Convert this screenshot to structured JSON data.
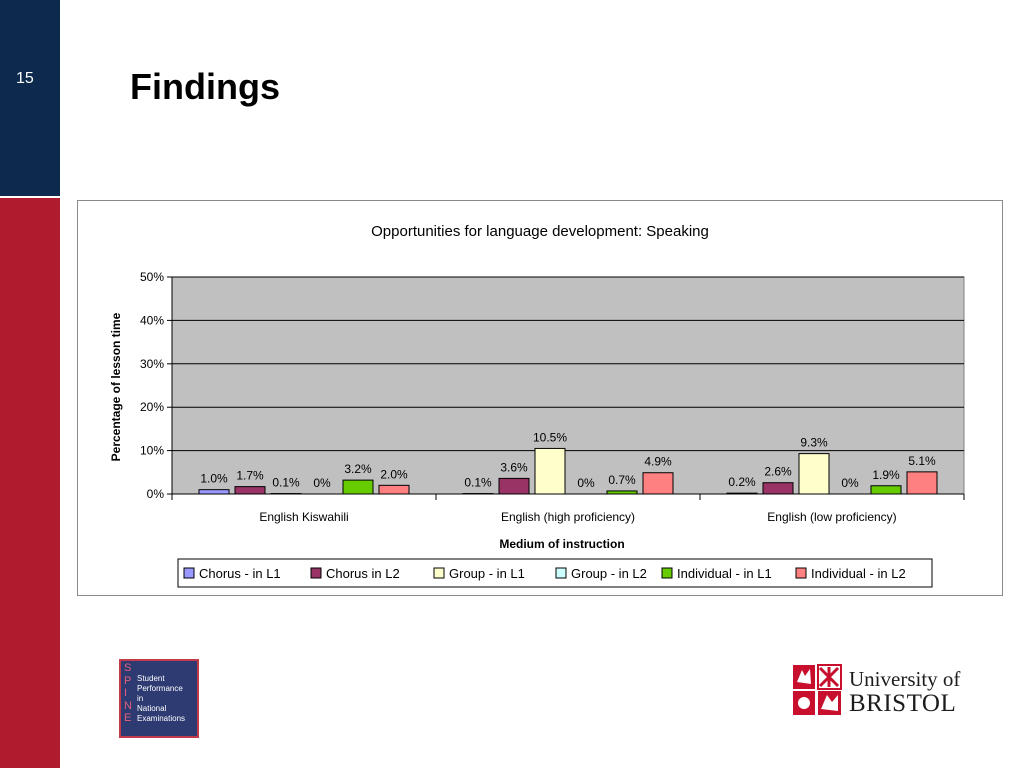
{
  "slide": {
    "number": "15",
    "title": "Findings"
  },
  "colors": {
    "sidebar_top": "#0d2a4e",
    "sidebar_bottom": "#b01c2e",
    "plot_background": "#c0c0c0"
  },
  "chart_data": {
    "type": "bar",
    "title": "Opportunities for language development: Speaking",
    "xlabel": "Medium of instruction",
    "ylabel": "Percentage of lesson time",
    "ylim": [
      0,
      50
    ],
    "yticks": [
      "0%",
      "10%",
      "20%",
      "30%",
      "40%",
      "50%"
    ],
    "grid": true,
    "legend_position": "bottom",
    "categories": [
      "English Kiswahili",
      "English (high proficiency)",
      "English (low proficiency)"
    ],
    "series": [
      {
        "name": "Chorus - in L1",
        "color": "#9999ff",
        "values": [
          1.0,
          0.1,
          0.2
        ],
        "labels": [
          "1.0%",
          "0.1%",
          "0.2%"
        ]
      },
      {
        "name": "Chorus in L2",
        "color": "#993366",
        "values": [
          1.7,
          3.6,
          2.6
        ],
        "labels": [
          "1.7%",
          "3.6%",
          "2.6%"
        ]
      },
      {
        "name": "Group - in L1",
        "color": "#ffffcc",
        "values": [
          0.1,
          10.5,
          9.3
        ],
        "labels": [
          "0.1%",
          "10.5%",
          "9.3%"
        ]
      },
      {
        "name": "Group - in L2",
        "color": "#ccffff",
        "values": [
          0,
          0,
          0
        ],
        "labels": [
          "0%",
          "0%",
          "0%"
        ]
      },
      {
        "name": "Individual - in L1",
        "color": "#66cc00",
        "values": [
          3.2,
          0.7,
          1.9
        ],
        "labels": [
          "3.2%",
          "0.7%",
          "1.9%"
        ]
      },
      {
        "name": "Individual - in L2",
        "color": "#ff8080",
        "values": [
          2.0,
          4.9,
          5.1
        ],
        "labels": [
          "2.0%",
          "4.9%",
          "5.1%"
        ]
      }
    ]
  },
  "logos": {
    "spine": {
      "letters": [
        "S",
        "P",
        "I",
        "N",
        "E"
      ],
      "words": [
        "Student",
        "Performance",
        "in",
        "National",
        "Examinations"
      ]
    },
    "bristol": {
      "line1": "University of",
      "line2": "BRISTOL"
    }
  }
}
